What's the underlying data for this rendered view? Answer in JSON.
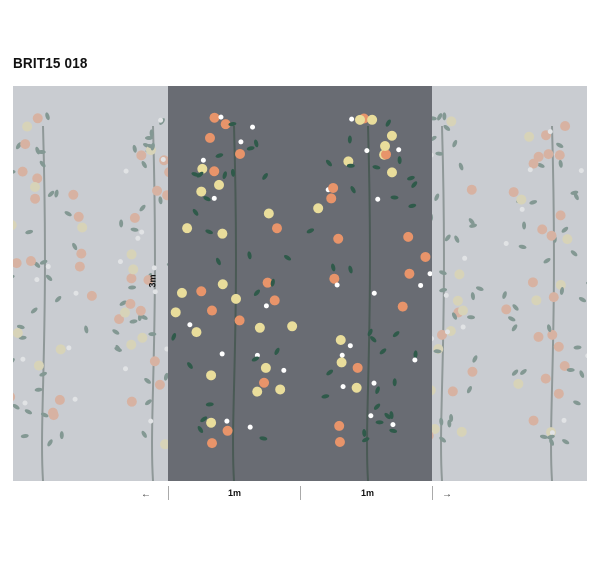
{
  "product": {
    "code": "BRIT15 018"
  },
  "mural": {
    "colors": {
      "background": "#696c73",
      "side_panels": "#c9ccd1",
      "fruit_orange": "#e8946a",
      "fruit_yellow": "#e9dd9b",
      "leaf": "#2f5a4a",
      "flower": "#ffffff"
    },
    "height_label": "3m",
    "width_labels": [
      "1m",
      "1m"
    ],
    "arrow_left": "←",
    "arrow_right": "→"
  }
}
